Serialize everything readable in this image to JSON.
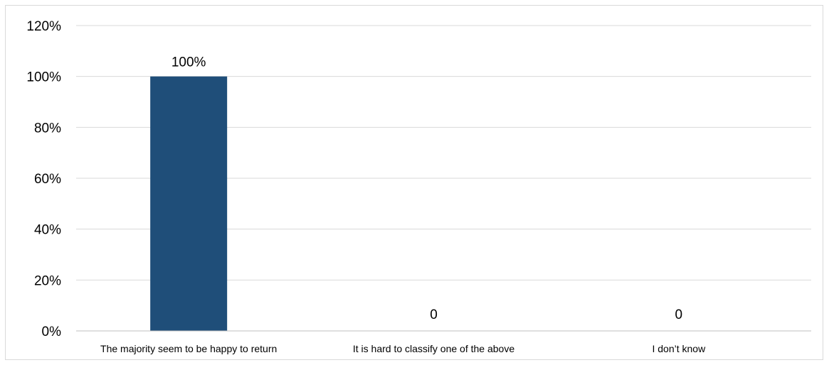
{
  "chart_data": {
    "type": "bar",
    "categories": [
      "The majority seem to be happy to return",
      "It is hard to classify one of the above",
      "I don’t know"
    ],
    "values": [
      100,
      0,
      0
    ],
    "data_labels": [
      "100%",
      "0",
      "0"
    ],
    "y_ticks": [
      "0%",
      "20%",
      "40%",
      "60%",
      "80%",
      "100%",
      "120%"
    ],
    "ylim": [
      0,
      120
    ],
    "grid": true,
    "legend": "none",
    "title": "",
    "xlabel": "",
    "ylabel": "",
    "colors": {
      "bar": "#1f4e79",
      "grid": "#d9d9d9",
      "axis": "#bfbfbf"
    }
  }
}
